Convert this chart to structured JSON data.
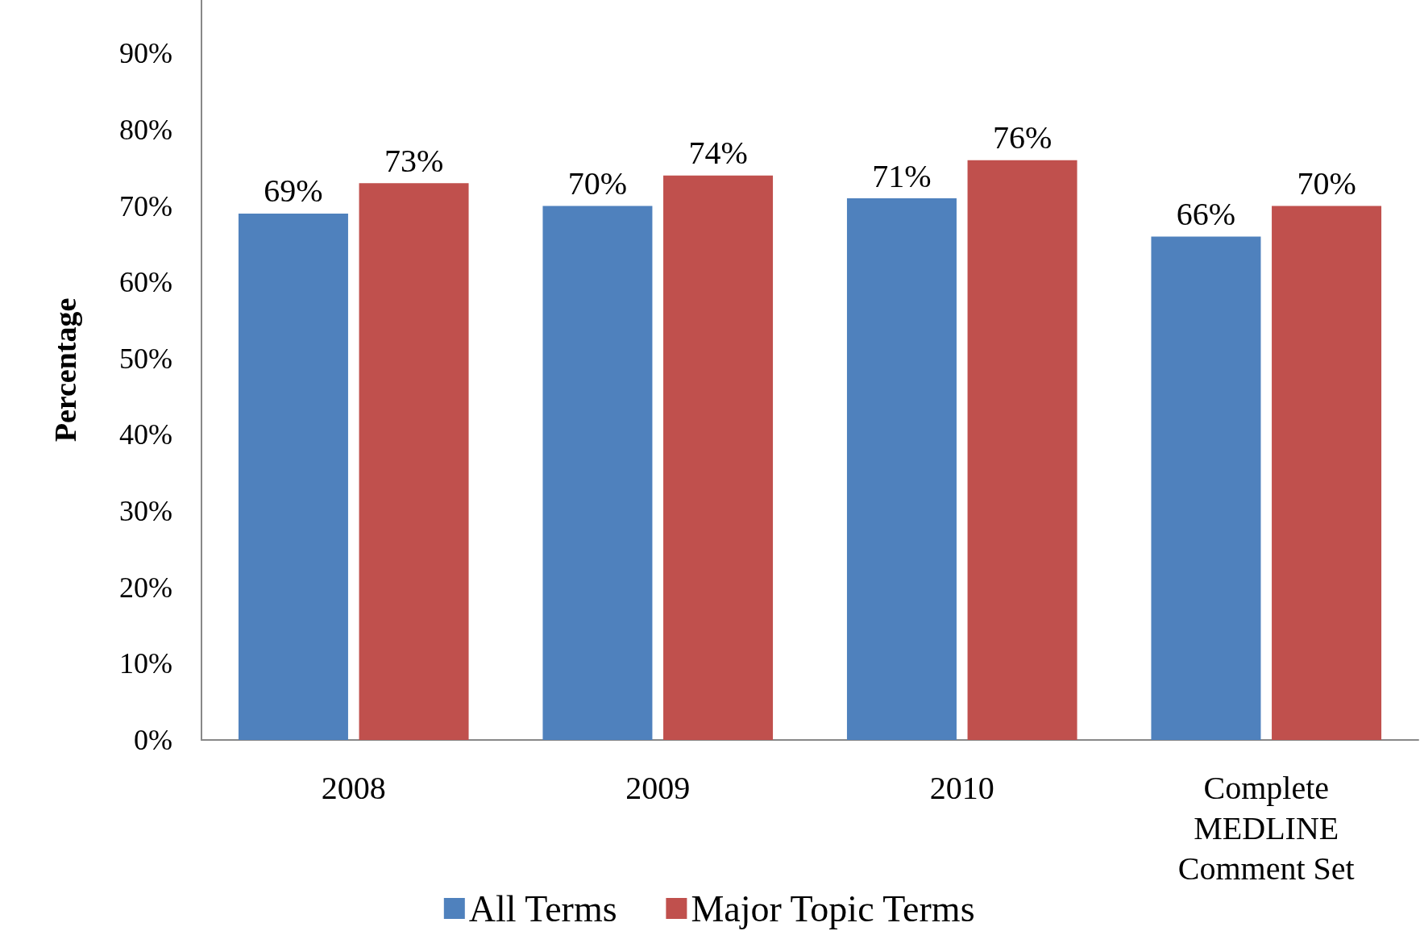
{
  "chart_data": {
    "type": "bar",
    "ylabel": "Percentage",
    "categories": [
      "2008",
      "2009",
      "2010",
      "Complete\nMEDLINE\nComment Set"
    ],
    "series": [
      {
        "name": "All Terms",
        "color": "#4f81bd",
        "values": [
          69,
          70,
          71,
          66
        ],
        "value_labels": [
          "69%",
          "70%",
          "71%",
          "66%"
        ]
      },
      {
        "name": "Major Topic Terms",
        "color": "#c0504d",
        "values": [
          73,
          74,
          76,
          70
        ],
        "value_labels": [
          "73%",
          "74%",
          "76%",
          "70%"
        ]
      }
    ],
    "ylim": [
      0,
      97
    ],
    "yticks": [
      {
        "value": 0,
        "label": "0%"
      },
      {
        "value": 10,
        "label": "10%"
      },
      {
        "value": 20,
        "label": "20%"
      },
      {
        "value": 30,
        "label": "30%"
      },
      {
        "value": 40,
        "label": "40%"
      },
      {
        "value": 50,
        "label": "50%"
      },
      {
        "value": 60,
        "label": "60%"
      },
      {
        "value": 70,
        "label": "70%"
      },
      {
        "value": 80,
        "label": "80%"
      },
      {
        "value": 90,
        "label": "90%"
      }
    ],
    "grid": false,
    "legend": "bottom"
  }
}
